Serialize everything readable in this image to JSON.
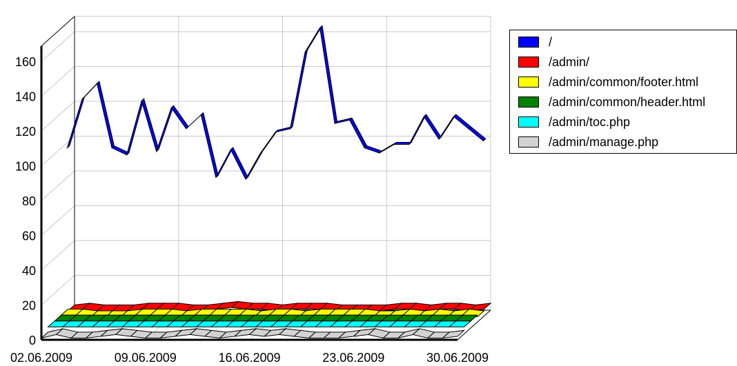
{
  "chart_data": {
    "type": "line",
    "ylim": [
      0,
      160
    ],
    "yticks": [
      0,
      20,
      40,
      60,
      80,
      100,
      120,
      140,
      160
    ],
    "xtick_labels": [
      "02.06.2009",
      "09.06.2009",
      "16.06.2009",
      "23.06.2009",
      "30.06.2009"
    ],
    "grid": true,
    "legend_position": "right",
    "series": [
      {
        "name": "/",
        "color": "#0000ff",
        "values": [
          99,
          127,
          136,
          99,
          95,
          126,
          97,
          122,
          110,
          118,
          82,
          98,
          81,
          96,
          108,
          110,
          154,
          168,
          113,
          115,
          99,
          96,
          101,
          101,
          117,
          104,
          117,
          110,
          103
        ]
      },
      {
        "name": "/admin/",
        "color": "#ff0000",
        "values": [
          3,
          4,
          3,
          3,
          3,
          4,
          4,
          4,
          3,
          3,
          4,
          5,
          4,
          4,
          3,
          4,
          4,
          4,
          3,
          3,
          3,
          3,
          4,
          4,
          3,
          4,
          4,
          3,
          4
        ]
      },
      {
        "name": "/admin/common/footer.html",
        "color": "#ffff00",
        "values": [
          4,
          4,
          3,
          3,
          3,
          4,
          4,
          4,
          3,
          4,
          4,
          4,
          4,
          3,
          4,
          4,
          3,
          4,
          4,
          4,
          4,
          3,
          3,
          4,
          3,
          4,
          3,
          4,
          3
        ]
      },
      {
        "name": "/admin/common/header.html",
        "color": "#008000",
        "values": [
          4,
          4,
          4,
          4,
          4,
          4,
          4,
          4,
          4,
          4,
          4,
          4,
          4,
          4,
          4,
          4,
          4,
          4,
          4,
          4,
          4,
          4,
          4,
          4,
          4,
          4,
          4,
          4,
          4
        ]
      },
      {
        "name": "/admin/toc.php",
        "color": "#00ffff",
        "values": [
          4,
          4,
          4,
          4,
          4,
          4,
          4,
          4,
          4,
          4,
          4,
          4,
          4,
          4,
          4,
          4,
          4,
          4,
          4,
          4,
          4,
          4,
          4,
          4,
          4,
          4,
          4,
          4,
          4
        ]
      },
      {
        "name": "/admin/manage.php",
        "color": "#d3d3d3",
        "values": [
          1,
          3,
          1,
          1,
          2,
          3,
          2,
          1,
          1,
          2,
          3,
          2,
          1,
          2,
          3,
          2,
          3,
          2,
          1,
          1,
          1,
          2,
          3,
          1,
          1,
          3,
          1,
          1,
          2
        ]
      }
    ]
  }
}
